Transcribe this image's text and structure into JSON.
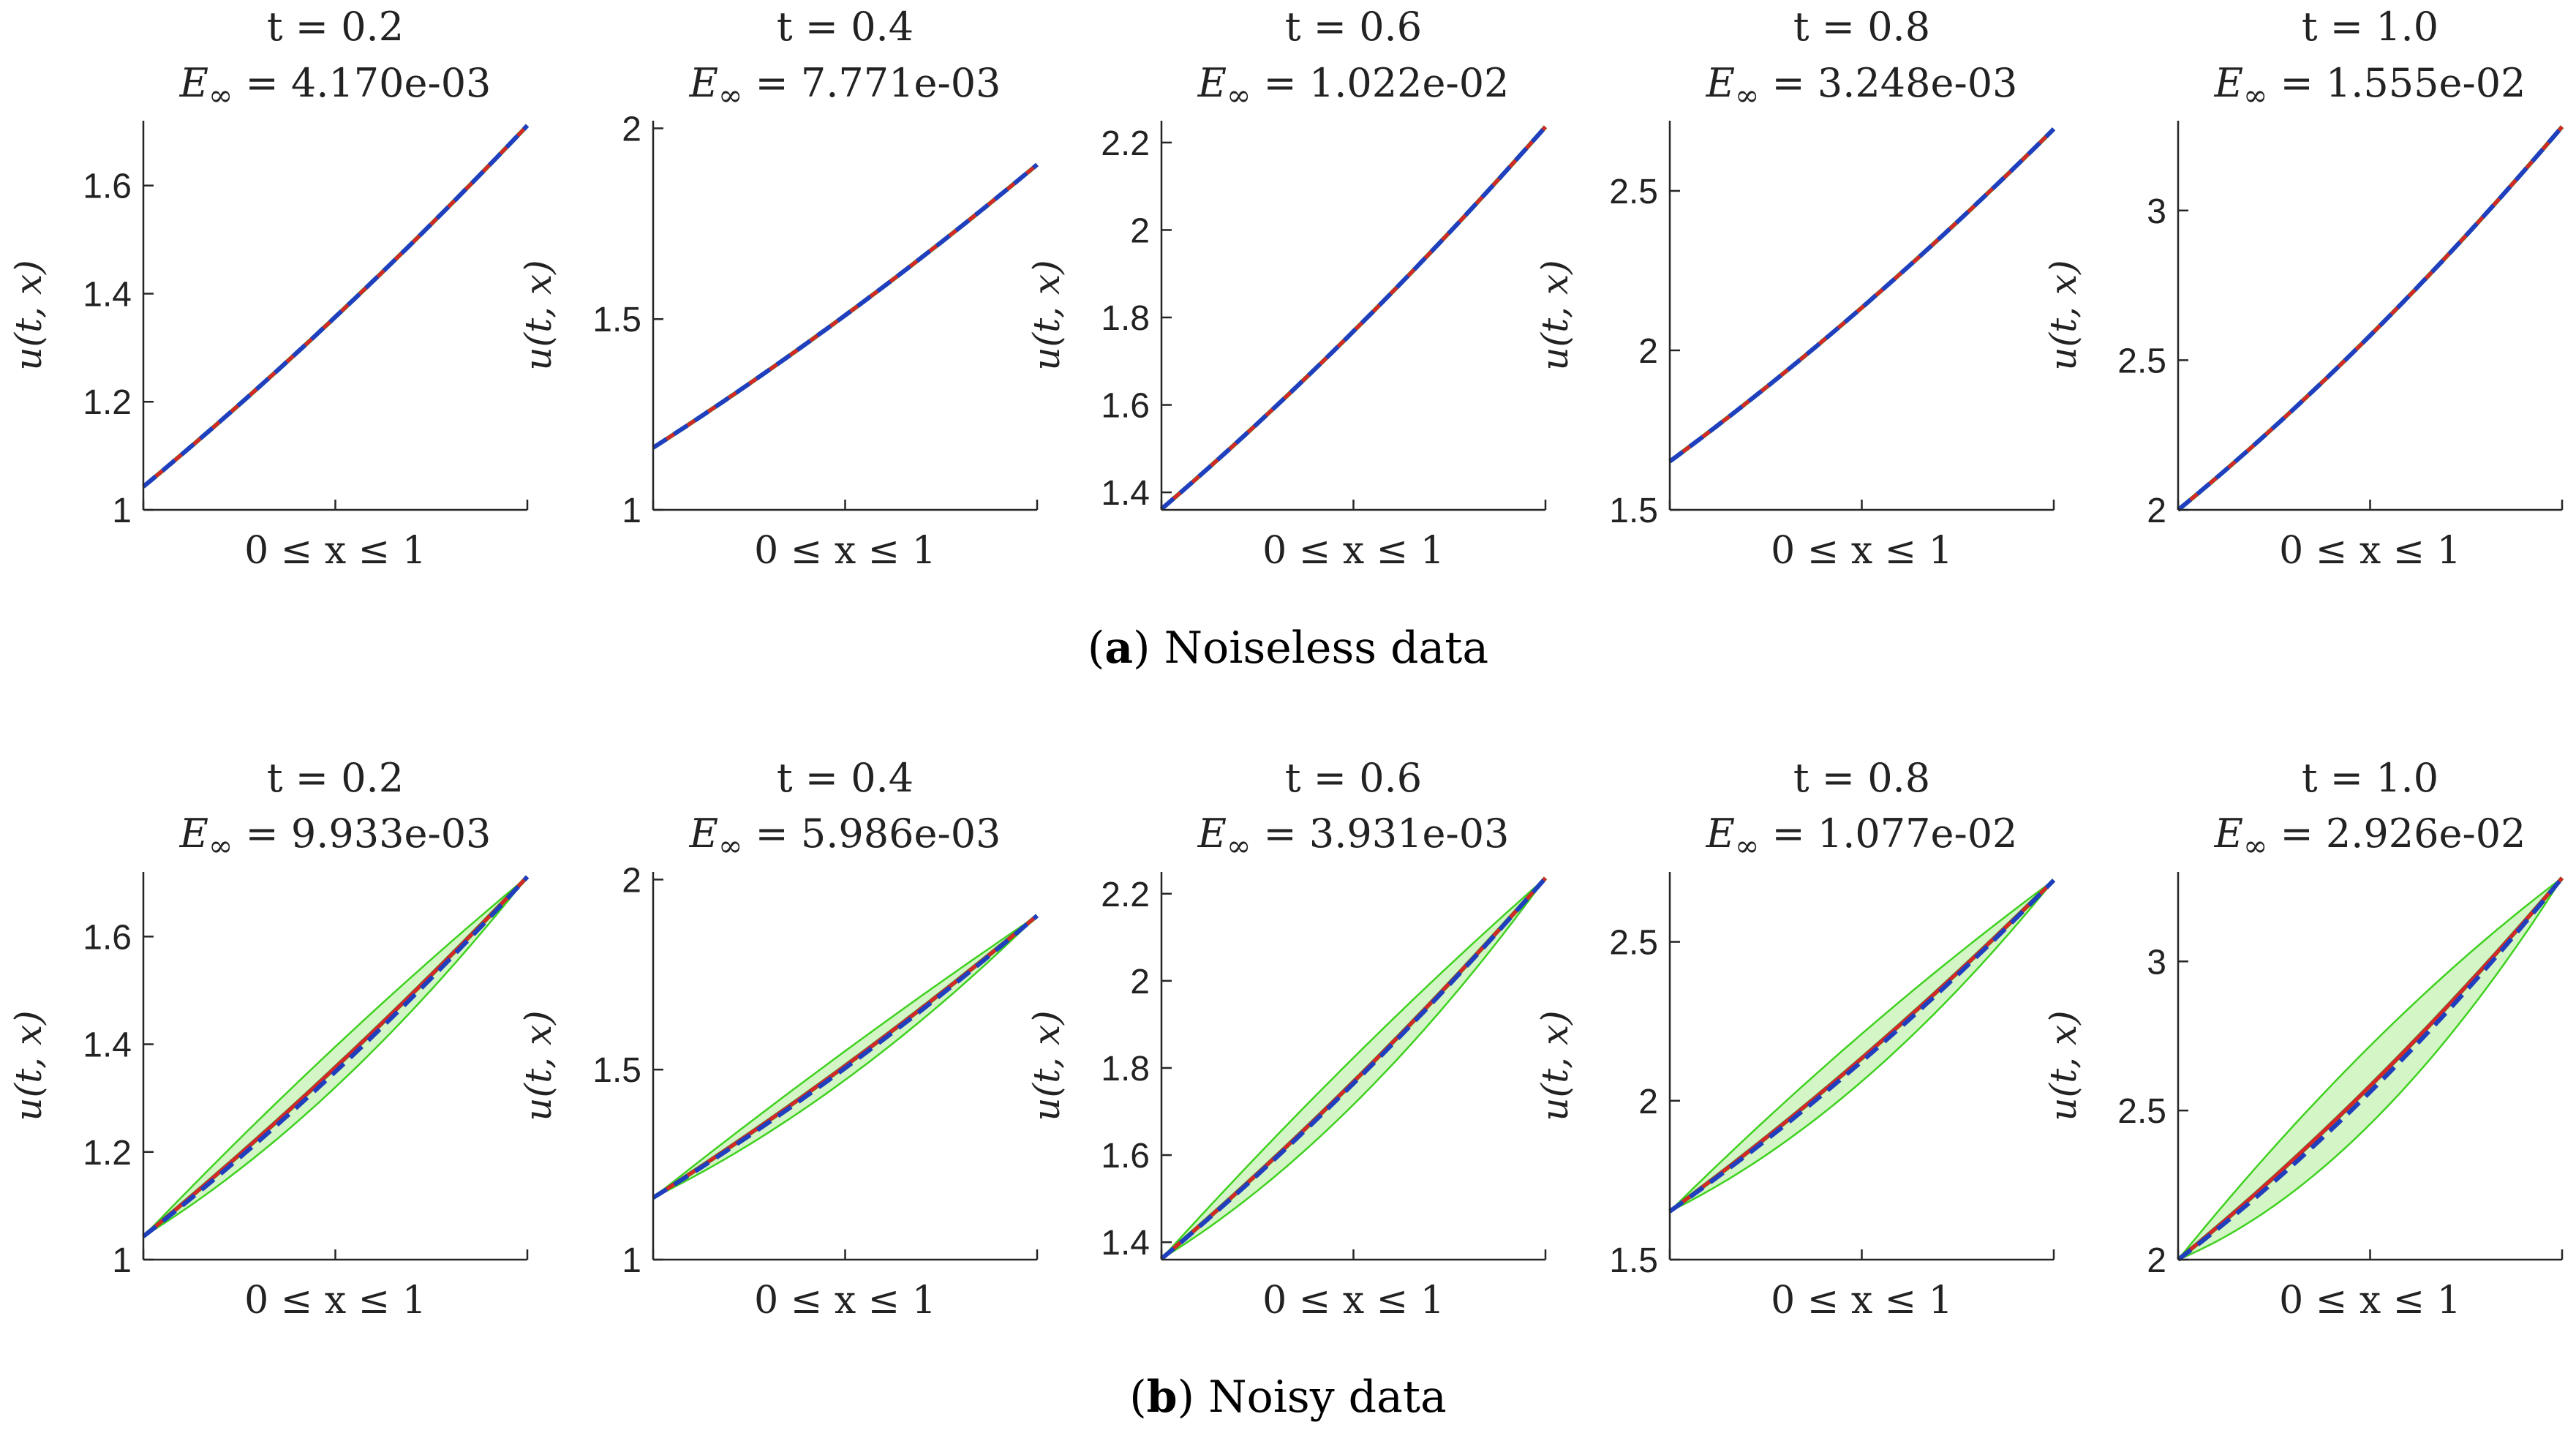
{
  "figure": {
    "captions": [
      {
        "letter": "a",
        "text": " Noiseless data"
      },
      {
        "letter": "b",
        "text": " Noisy data"
      }
    ]
  },
  "colors": {
    "exact": "#2ca02c",
    "prediction": "#d62728",
    "mean": "#1f3fbf",
    "band_fill": "#d4f5c6",
    "band_edge": "#3fd11f",
    "axis": "#262626"
  },
  "chart_data": [
    {
      "type": "line",
      "row": "a",
      "panel": 1,
      "t_label": "t = 0.2",
      "error_symbol": "E",
      "error_sub": "∞",
      "error_value": "4.170e-03",
      "xlabel": "0 ≤ x ≤ 1",
      "ylabel": "u(t, x)",
      "ylim": [
        1.0,
        1.72
      ],
      "yticks": [
        1,
        1.2,
        1.4,
        1.6
      ],
      "ytick_labels": [
        "1",
        "1.2",
        "1.4",
        "1.6"
      ],
      "u_start": 1.043,
      "u_end": 1.711,
      "curvature": 0.12,
      "band": 0,
      "mean_dev": 0
    },
    {
      "type": "line",
      "row": "a",
      "panel": 2,
      "t_label": "t = 0.4",
      "error_symbol": "E",
      "error_sub": "∞",
      "error_value": "7.771e-03",
      "xlabel": "0 ≤ x ≤ 1",
      "ylabel": "u(t, x)",
      "ylim": [
        1.0,
        2.02
      ],
      "yticks": [
        1,
        1.5,
        2
      ],
      "ytick_labels": [
        "1",
        "1.5",
        "2"
      ],
      "u_start": 1.163,
      "u_end": 1.905,
      "curvature": 0.13,
      "band": 0,
      "mean_dev": 0
    },
    {
      "type": "line",
      "row": "a",
      "panel": 3,
      "t_label": "t = 0.6",
      "error_symbol": "E",
      "error_sub": "∞",
      "error_value": "1.022e-02",
      "xlabel": "0 ≤ x ≤ 1",
      "ylabel": "u(t, x)",
      "ylim": [
        1.36,
        2.25
      ],
      "yticks": [
        1.4,
        1.6,
        1.8,
        2.0,
        2.2
      ],
      "ytick_labels": [
        "1.4",
        "1.6",
        "1.8",
        "2",
        "2.2"
      ],
      "u_start": 1.362,
      "u_end": 2.236,
      "curvature": 0.14,
      "band": 0,
      "mean_dev": 0
    },
    {
      "type": "line",
      "row": "a",
      "panel": 4,
      "t_label": "t = 0.8",
      "error_symbol": "E",
      "error_sub": "∞",
      "error_value": "3.248e-03",
      "xlabel": "0 ≤ x ≤ 1",
      "ylabel": "u(t, x)",
      "ylim": [
        1.5,
        2.72
      ],
      "yticks": [
        1.5,
        2,
        2.5
      ],
      "ytick_labels": [
        "1.5",
        "2",
        "2.5"
      ],
      "u_start": 1.652,
      "u_end": 2.694,
      "curvature": 0.15,
      "band": 0,
      "mean_dev": 0
    },
    {
      "type": "line",
      "row": "a",
      "panel": 5,
      "t_label": "t = 1.0",
      "error_symbol": "E",
      "error_sub": "∞",
      "error_value": "1.555e-02",
      "xlabel": "0 ≤ x ≤ 1",
      "ylabel": "u(t, x)",
      "ylim": [
        2.0,
        3.3
      ],
      "yticks": [
        2,
        2.5,
        3
      ],
      "ytick_labels": [
        "2",
        "2.5",
        "3"
      ],
      "u_start": 2.0,
      "u_end": 3.28,
      "curvature": 0.18,
      "band": 0,
      "mean_dev": 0
    },
    {
      "type": "line",
      "row": "b",
      "panel": 1,
      "t_label": "t = 0.2",
      "error_symbol": "E",
      "error_sub": "∞",
      "error_value": "9.933e-03",
      "xlabel": "0 ≤ x ≤ 1",
      "ylabel": "u(t, x)",
      "ylim": [
        1.0,
        1.72
      ],
      "yticks": [
        1,
        1.2,
        1.4,
        1.6
      ],
      "ytick_labels": [
        "1",
        "1.2",
        "1.4",
        "1.6"
      ],
      "u_start": 1.043,
      "u_end": 1.711,
      "curvature": 0.12,
      "band": 0.055,
      "mean_dev": -0.008
    },
    {
      "type": "line",
      "row": "b",
      "panel": 2,
      "t_label": "t = 0.4",
      "error_symbol": "E",
      "error_sub": "∞",
      "error_value": "5.986e-03",
      "xlabel": "0 ≤ x ≤ 1",
      "ylabel": "u(t, x)",
      "ylim": [
        1.0,
        2.02
      ],
      "yticks": [
        1,
        1.5,
        2
      ],
      "ytick_labels": [
        "1",
        "1.5",
        "2"
      ],
      "u_start": 1.163,
      "u_end": 1.905,
      "curvature": 0.13,
      "band": 0.05,
      "mean_dev": -0.006
    },
    {
      "type": "line",
      "row": "b",
      "panel": 3,
      "t_label": "t = 0.6",
      "error_symbol": "E",
      "error_sub": "∞",
      "error_value": "3.931e-03",
      "xlabel": "0 ≤ x ≤ 1",
      "ylabel": "u(t, x)",
      "ylim": [
        1.36,
        2.25
      ],
      "yticks": [
        1.4,
        1.6,
        1.8,
        2.0,
        2.2
      ],
      "ytick_labels": [
        "1.4",
        "1.6",
        "1.8",
        "2",
        "2.2"
      ],
      "u_start": 1.362,
      "u_end": 2.236,
      "curvature": 0.14,
      "band": 0.06,
      "mean_dev": -0.004
    },
    {
      "type": "line",
      "row": "b",
      "panel": 4,
      "t_label": "t = 0.8",
      "error_symbol": "E",
      "error_sub": "∞",
      "error_value": "1.077e-02",
      "xlabel": "0 ≤ x ≤ 1",
      "ylabel": "u(t, x)",
      "ylim": [
        1.5,
        2.72
      ],
      "yticks": [
        1.5,
        2,
        2.5
      ],
      "ytick_labels": [
        "1.5",
        "2",
        "2.5"
      ],
      "u_start": 1.652,
      "u_end": 2.694,
      "curvature": 0.15,
      "band": 0.07,
      "mean_dev": -0.01
    },
    {
      "type": "line",
      "row": "b",
      "panel": 5,
      "t_label": "t = 1.0",
      "error_symbol": "E",
      "error_sub": "∞",
      "error_value": "2.926e-02",
      "xlabel": "0 ≤ x ≤ 1",
      "ylabel": "u(t, x)",
      "ylim": [
        2.0,
        3.3
      ],
      "yticks": [
        2,
        2.5,
        3
      ],
      "ytick_labels": [
        "2",
        "2.5",
        "3"
      ],
      "u_start": 2.0,
      "u_end": 3.28,
      "curvature": 0.18,
      "band": 0.1,
      "mean_dev": -0.02
    }
  ]
}
